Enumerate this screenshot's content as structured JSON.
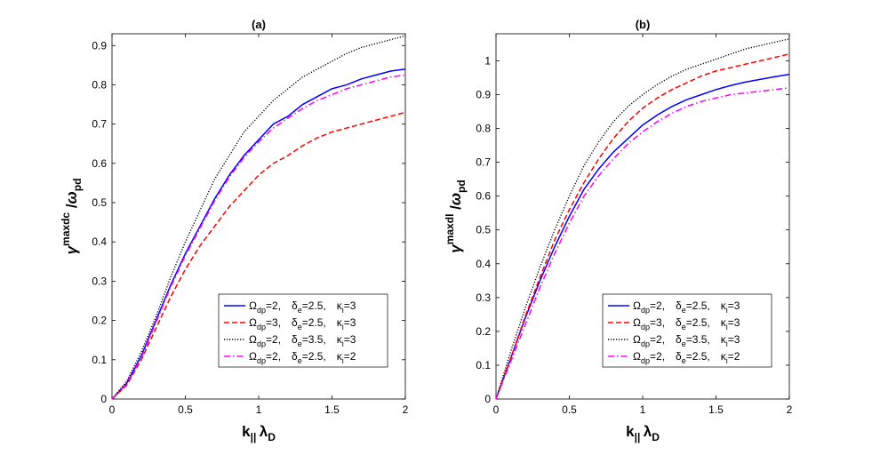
{
  "chart_data": [
    {
      "type": "line",
      "title": "(a)",
      "xlabel": "k_|| λ_D",
      "ylabel": "γ_dc^max / ω_pd",
      "xlim": [
        0,
        2
      ],
      "ylim": [
        0,
        0.93
      ],
      "xticks": [
        0,
        0.5,
        1,
        1.5,
        2
      ],
      "yticks": [
        0,
        0.1,
        0.2,
        0.3,
        0.4,
        0.5,
        0.6,
        0.7,
        0.8,
        0.9
      ],
      "grid": false,
      "legend_position": "lower-right",
      "x": [
        0,
        0.1,
        0.2,
        0.3,
        0.4,
        0.5,
        0.6,
        0.7,
        0.8,
        0.9,
        1.0,
        1.1,
        1.2,
        1.3,
        1.4,
        1.5,
        1.6,
        1.7,
        1.8,
        1.9,
        2.0
      ],
      "series": [
        {
          "name": "Ω_dp=2, δ_e=2.5, κ_i=3",
          "color": "#0000ff",
          "dash": "solid",
          "values": [
            0,
            0.04,
            0.11,
            0.2,
            0.29,
            0.37,
            0.44,
            0.51,
            0.57,
            0.62,
            0.66,
            0.7,
            0.72,
            0.75,
            0.77,
            0.79,
            0.8,
            0.815,
            0.825,
            0.835,
            0.84
          ]
        },
        {
          "name": "Ω_dp=3, δ_e=2.5, κ_i=3",
          "color": "#ff0000",
          "dash": "dashed",
          "values": [
            0,
            0.035,
            0.1,
            0.18,
            0.26,
            0.33,
            0.39,
            0.44,
            0.49,
            0.53,
            0.57,
            0.6,
            0.62,
            0.645,
            0.665,
            0.68,
            0.69,
            0.7,
            0.71,
            0.72,
            0.73
          ]
        },
        {
          "name": "Ω_dp=2, δ_e=3.5, κ_i=3",
          "color": "#000000",
          "dash": "dotted",
          "values": [
            0,
            0.045,
            0.12,
            0.21,
            0.31,
            0.4,
            0.48,
            0.56,
            0.62,
            0.68,
            0.72,
            0.76,
            0.79,
            0.82,
            0.84,
            0.86,
            0.88,
            0.895,
            0.905,
            0.915,
            0.925
          ]
        },
        {
          "name": "Ω_dp=2, δ_e=2.5, κ_i=2",
          "color": "#ff00ff",
          "dash": "dashdot",
          "values": [
            0,
            0.038,
            0.105,
            0.195,
            0.285,
            0.365,
            0.435,
            0.505,
            0.565,
            0.615,
            0.655,
            0.69,
            0.715,
            0.74,
            0.76,
            0.775,
            0.79,
            0.8,
            0.81,
            0.82,
            0.825
          ]
        }
      ]
    },
    {
      "type": "line",
      "title": "(b)",
      "xlabel": "k_|| λ_D",
      "ylabel": "γ_dl^max / ω_pd",
      "xlim": [
        0,
        2
      ],
      "ylim": [
        0,
        1.08
      ],
      "xticks": [
        0,
        0.5,
        1,
        1.5,
        2
      ],
      "yticks": [
        0,
        0.1,
        0.2,
        0.3,
        0.4,
        0.5,
        0.6,
        0.7,
        0.8,
        0.9,
        1
      ],
      "grid": false,
      "legend_position": "lower-right",
      "x": [
        0,
        0.1,
        0.2,
        0.3,
        0.4,
        0.5,
        0.6,
        0.7,
        0.8,
        0.9,
        1.0,
        1.1,
        1.2,
        1.3,
        1.4,
        1.5,
        1.6,
        1.7,
        1.8,
        1.9,
        2.0
      ],
      "series": [
        {
          "name": "Ω_dp=2, δ_e=2.5, κ_i=3",
          "color": "#0000ff",
          "dash": "solid",
          "values": [
            0,
            0.12,
            0.24,
            0.35,
            0.45,
            0.54,
            0.62,
            0.68,
            0.73,
            0.77,
            0.81,
            0.84,
            0.865,
            0.885,
            0.9,
            0.915,
            0.927,
            0.937,
            0.945,
            0.953,
            0.96
          ]
        },
        {
          "name": "Ω_dp=3, δ_e=2.5, κ_i=3",
          "color": "#ff0000",
          "dash": "dashed",
          "values": [
            0,
            0.12,
            0.245,
            0.36,
            0.47,
            0.56,
            0.64,
            0.71,
            0.77,
            0.82,
            0.86,
            0.89,
            0.915,
            0.935,
            0.955,
            0.97,
            0.98,
            0.99,
            1.0,
            1.01,
            1.02
          ]
        },
        {
          "name": "Ω_dp=2, δ_e=3.5, κ_i=3",
          "color": "#000000",
          "dash": "dotted",
          "values": [
            0,
            0.14,
            0.27,
            0.39,
            0.5,
            0.6,
            0.69,
            0.76,
            0.82,
            0.865,
            0.9,
            0.93,
            0.955,
            0.975,
            0.99,
            1.005,
            1.02,
            1.035,
            1.045,
            1.055,
            1.065
          ]
        },
        {
          "name": "Ω_dp=2, δ_e=2.5, κ_i=2",
          "color": "#ff00ff",
          "dash": "dashdot",
          "values": [
            0,
            0.11,
            0.22,
            0.33,
            0.43,
            0.52,
            0.6,
            0.66,
            0.71,
            0.755,
            0.79,
            0.82,
            0.845,
            0.865,
            0.88,
            0.89,
            0.9,
            0.905,
            0.91,
            0.915,
            0.92
          ]
        }
      ]
    }
  ]
}
